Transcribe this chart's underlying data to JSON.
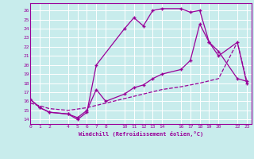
{
  "xlabel": "Windchill (Refroidissement éolien,°C)",
  "bg_color": "#c8ecec",
  "grid_color": "#ffffff",
  "line_color": "#990099",
  "xticks": [
    0,
    1,
    2,
    4,
    5,
    6,
    7,
    8,
    10,
    11,
    12,
    13,
    14,
    16,
    17,
    18,
    19,
    20,
    22,
    23
  ],
  "yticks": [
    14,
    15,
    16,
    17,
    18,
    19,
    20,
    21,
    22,
    23,
    24,
    25,
    26
  ],
  "xlim": [
    0,
    23.5
  ],
  "ylim": [
    13.5,
    26.8
  ],
  "line1_x": [
    0,
    1,
    2,
    4,
    5,
    6,
    7,
    10,
    11,
    12,
    13,
    14,
    16,
    17,
    18,
    19,
    20,
    22,
    23
  ],
  "line1_y": [
    16.2,
    15.3,
    14.8,
    14.6,
    14.0,
    14.8,
    20.0,
    24.0,
    25.2,
    24.3,
    26.0,
    26.2,
    26.2,
    25.8,
    26.0,
    22.5,
    21.0,
    22.5,
    18.0
  ],
  "line2_x": [
    0,
    1,
    2,
    4,
    5,
    6,
    7,
    8,
    10,
    11,
    12,
    13,
    14,
    16,
    17,
    18,
    19,
    20,
    22,
    23
  ],
  "line2_y": [
    16.2,
    15.3,
    14.8,
    14.6,
    14.2,
    15.0,
    17.3,
    16.0,
    16.8,
    17.5,
    17.8,
    18.5,
    19.0,
    19.5,
    20.5,
    24.5,
    22.5,
    21.5,
    18.5,
    18.2
  ],
  "line3_x": [
    0,
    2,
    4,
    6,
    8,
    10,
    12,
    14,
    16,
    18,
    20,
    22,
    23
  ],
  "line3_y": [
    15.8,
    15.2,
    15.0,
    15.3,
    15.8,
    16.3,
    16.8,
    17.3,
    17.6,
    18.0,
    18.5,
    22.5,
    18.2
  ]
}
